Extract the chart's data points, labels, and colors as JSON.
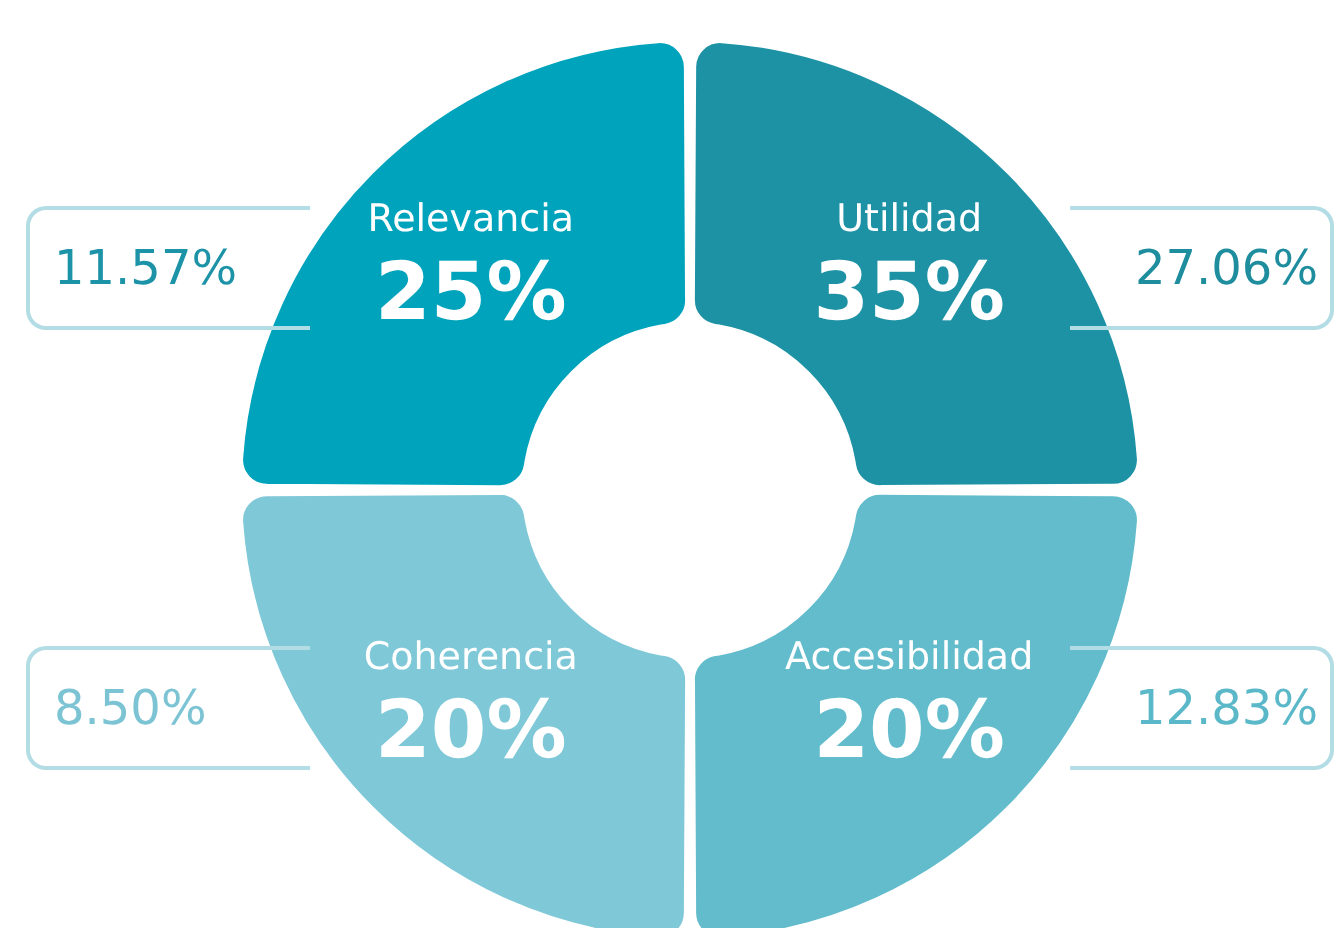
{
  "chart_data": {
    "type": "other",
    "categories": [
      "Utilidad",
      "Accesibilidad",
      "Coherencia",
      "Relevancia"
    ],
    "colors": [
      "#1e92a5",
      "#62bccc",
      "#7fc8d8",
      "#00a3bc"
    ],
    "series": [
      {
        "colors": [
          "#ffffff",
          "#ffffff",
          "#ffffff",
          "#ffffff"
        ],
        "values": [
          35,
          20,
          20,
          25
        ],
        "value_labels": [
          "35%",
          "20%",
          "20%",
          "25%"
        ]
      },
      {
        "colors": [
          "#1e8d9e",
          "#5ab8c8",
          "#7cc4d4",
          "#1d93a8"
        ],
        "values": [
          27.06,
          12.83,
          8.5,
          11.57
        ],
        "value_labels": [
          "27.06%",
          "12.83%",
          "8.50%",
          "11.57%"
        ]
      }
    ]
  }
}
